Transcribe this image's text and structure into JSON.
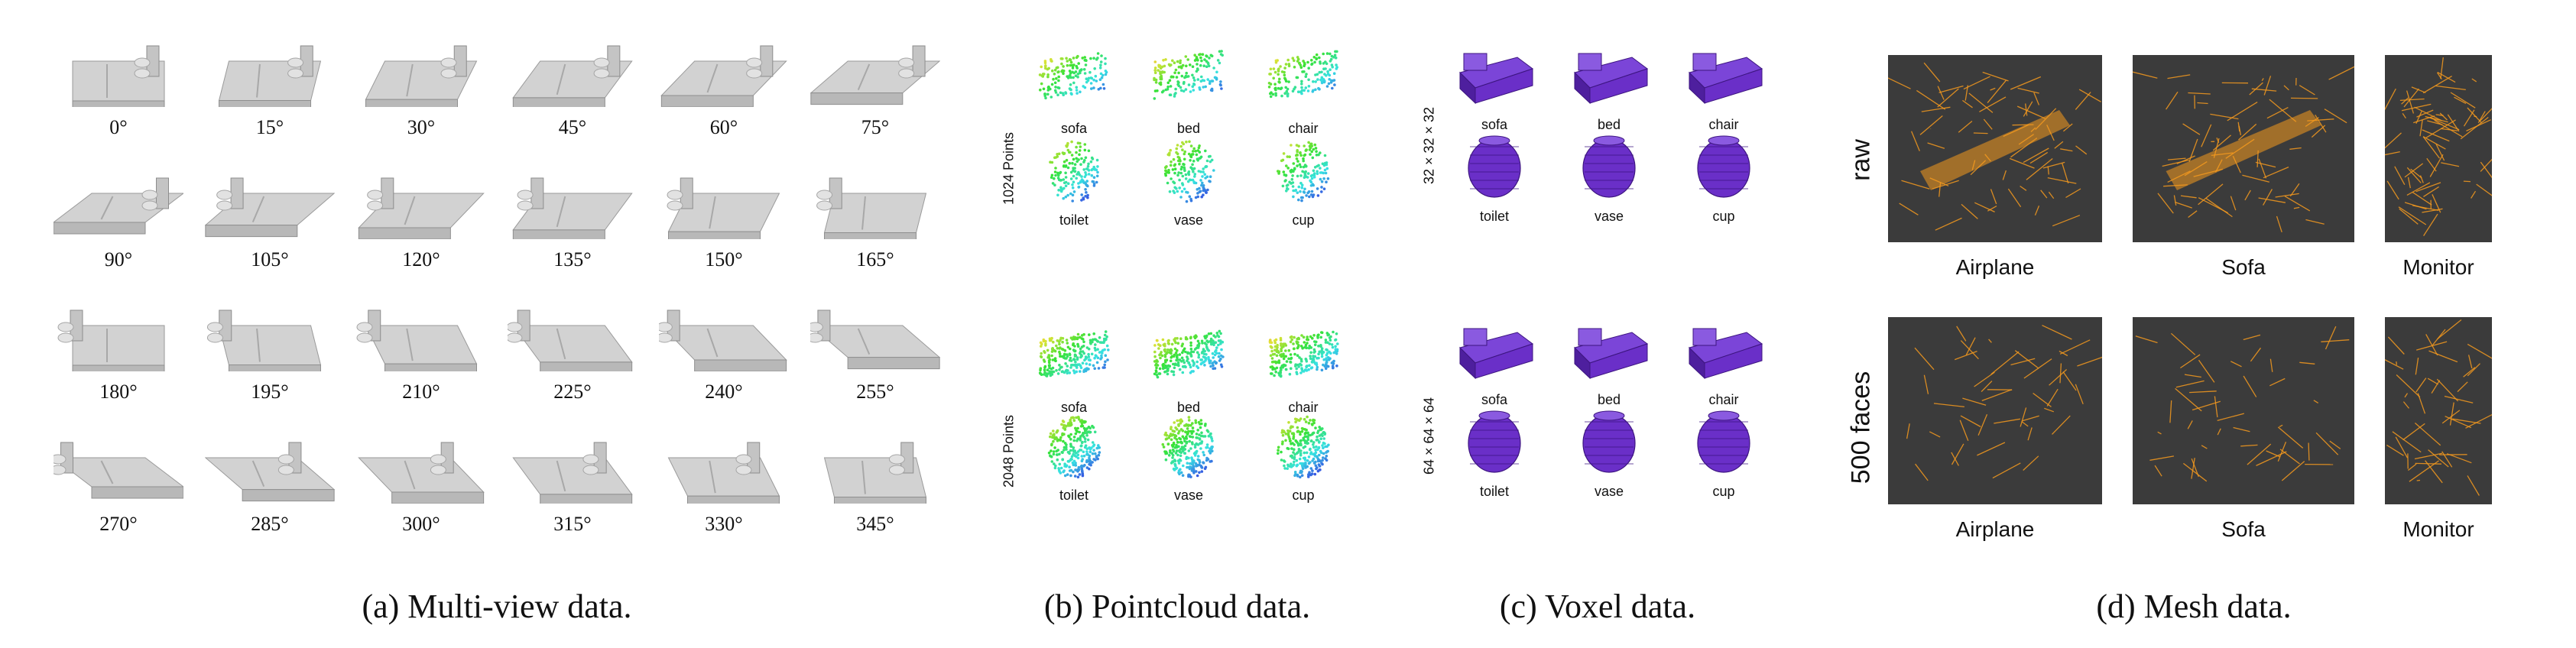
{
  "panel_a": {
    "caption": "(a)  Multi-view data.",
    "angles": [
      "0°",
      "15°",
      "30°",
      "45°",
      "60°",
      "75°",
      "90°",
      "105°",
      "120°",
      "135°",
      "150°",
      "165°",
      "180°",
      "195°",
      "210°",
      "225°",
      "240°",
      "255°",
      "270°",
      "285°",
      "300°",
      "315°",
      "330°",
      "345°"
    ]
  },
  "panel_b": {
    "caption": "(b)  Pointcloud data.",
    "rows": [
      {
        "label": "1024 Points",
        "top": [
          "sofa",
          "bed",
          "chair"
        ],
        "bottom": [
          "toilet",
          "vase",
          "cup"
        ]
      },
      {
        "label": "2048 Points",
        "top": [
          "sofa",
          "bed",
          "chair"
        ],
        "bottom": [
          "toilet",
          "vase",
          "cup"
        ]
      }
    ]
  },
  "panel_c": {
    "caption": "(c)  Voxel data.",
    "rows": [
      {
        "label": "32 × 32 × 32",
        "top": [
          "sofa",
          "bed",
          "chair"
        ],
        "bottom": [
          "toilet",
          "vase",
          "cup"
        ]
      },
      {
        "label": "64 × 64 × 64",
        "top": [
          "sofa",
          "bed",
          "chair"
        ],
        "bottom": [
          "toilet",
          "vase",
          "cup"
        ]
      }
    ]
  },
  "panel_d": {
    "caption": "(d)  Mesh data.",
    "rows": [
      {
        "label": "raw",
        "items": [
          "Airplane",
          "Sofa",
          "Monitor"
        ]
      },
      {
        "label": "500 faces",
        "items": [
          "Airplane",
          "Sofa",
          "Monitor"
        ]
      }
    ]
  },
  "colors": {
    "mesh_bg": "#3b3b3b",
    "mesh_wire": "#f59a1e",
    "voxel": "#6a2fc8",
    "render_gray": "#c9c9c9"
  }
}
